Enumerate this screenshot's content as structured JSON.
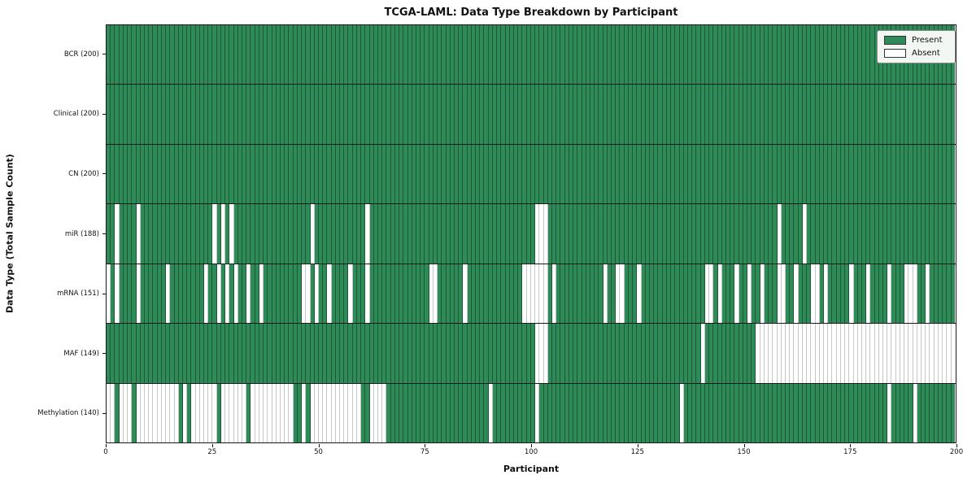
{
  "chart_data": {
    "type": "heatmap",
    "title": "TCGA-LAML: Data Type Breakdown by Participant",
    "xlabel": "Participant",
    "ylabel": "Data Type (Total Sample Count)",
    "n_participants": 200,
    "x_range": [
      0,
      200
    ],
    "x_ticks": [
      0,
      25,
      50,
      75,
      100,
      125,
      150,
      175,
      200
    ],
    "present_color": "#2e8b57",
    "absent_color": "#ffffff",
    "grid": "cell-edges-visible",
    "legend_position": "upper right",
    "legend": [
      {
        "label": "Present",
        "color": "#2e8b57"
      },
      {
        "label": "Absent",
        "color": "#ffffff"
      }
    ],
    "rows": [
      {
        "label": "BCR (200)",
        "total": 200,
        "absent": []
      },
      {
        "label": "Clinical (200)",
        "total": 200,
        "absent": []
      },
      {
        "label": "CN (200)",
        "total": 200,
        "absent": []
      },
      {
        "label": "miR (188)",
        "total": 188,
        "absent": [
          2,
          7,
          25,
          27,
          29,
          48,
          61,
          101,
          102,
          103,
          158,
          164
        ]
      },
      {
        "label": "mRNA (151)",
        "total": 151,
        "absent": [
          0,
          2,
          7,
          14,
          23,
          26,
          28,
          30,
          33,
          36,
          46,
          47,
          49,
          52,
          57,
          61,
          76,
          77,
          84,
          98,
          99,
          100,
          101,
          102,
          103,
          105,
          117,
          120,
          121,
          125,
          141,
          142,
          144,
          148,
          151,
          154,
          158,
          159,
          162,
          166,
          167,
          169,
          175,
          179,
          184,
          188,
          189,
          190,
          193
        ]
      },
      {
        "label": "MAF (149)",
        "total": 149,
        "absent": [
          101,
          102,
          103,
          140,
          153,
          154,
          155,
          156,
          157,
          158,
          159,
          160,
          161,
          162,
          163,
          164,
          165,
          166,
          167,
          168,
          169,
          170,
          171,
          172,
          173,
          174,
          175,
          176,
          177,
          178,
          179,
          180,
          181,
          182,
          183,
          184,
          185,
          186,
          187,
          188,
          189,
          190,
          191,
          192,
          193,
          194,
          195,
          196,
          197,
          198,
          199
        ]
      },
      {
        "label": "Methylation (140)",
        "total": 140,
        "absent": [
          0,
          1,
          3,
          4,
          5,
          7,
          8,
          9,
          10,
          11,
          12,
          13,
          14,
          15,
          16,
          18,
          20,
          21,
          22,
          23,
          24,
          25,
          27,
          28,
          29,
          30,
          31,
          32,
          34,
          35,
          36,
          37,
          38,
          39,
          40,
          41,
          42,
          43,
          46,
          48,
          49,
          50,
          51,
          52,
          53,
          54,
          55,
          56,
          57,
          58,
          59,
          62,
          63,
          64,
          65,
          90,
          101,
          135,
          184,
          190
        ]
      }
    ]
  }
}
